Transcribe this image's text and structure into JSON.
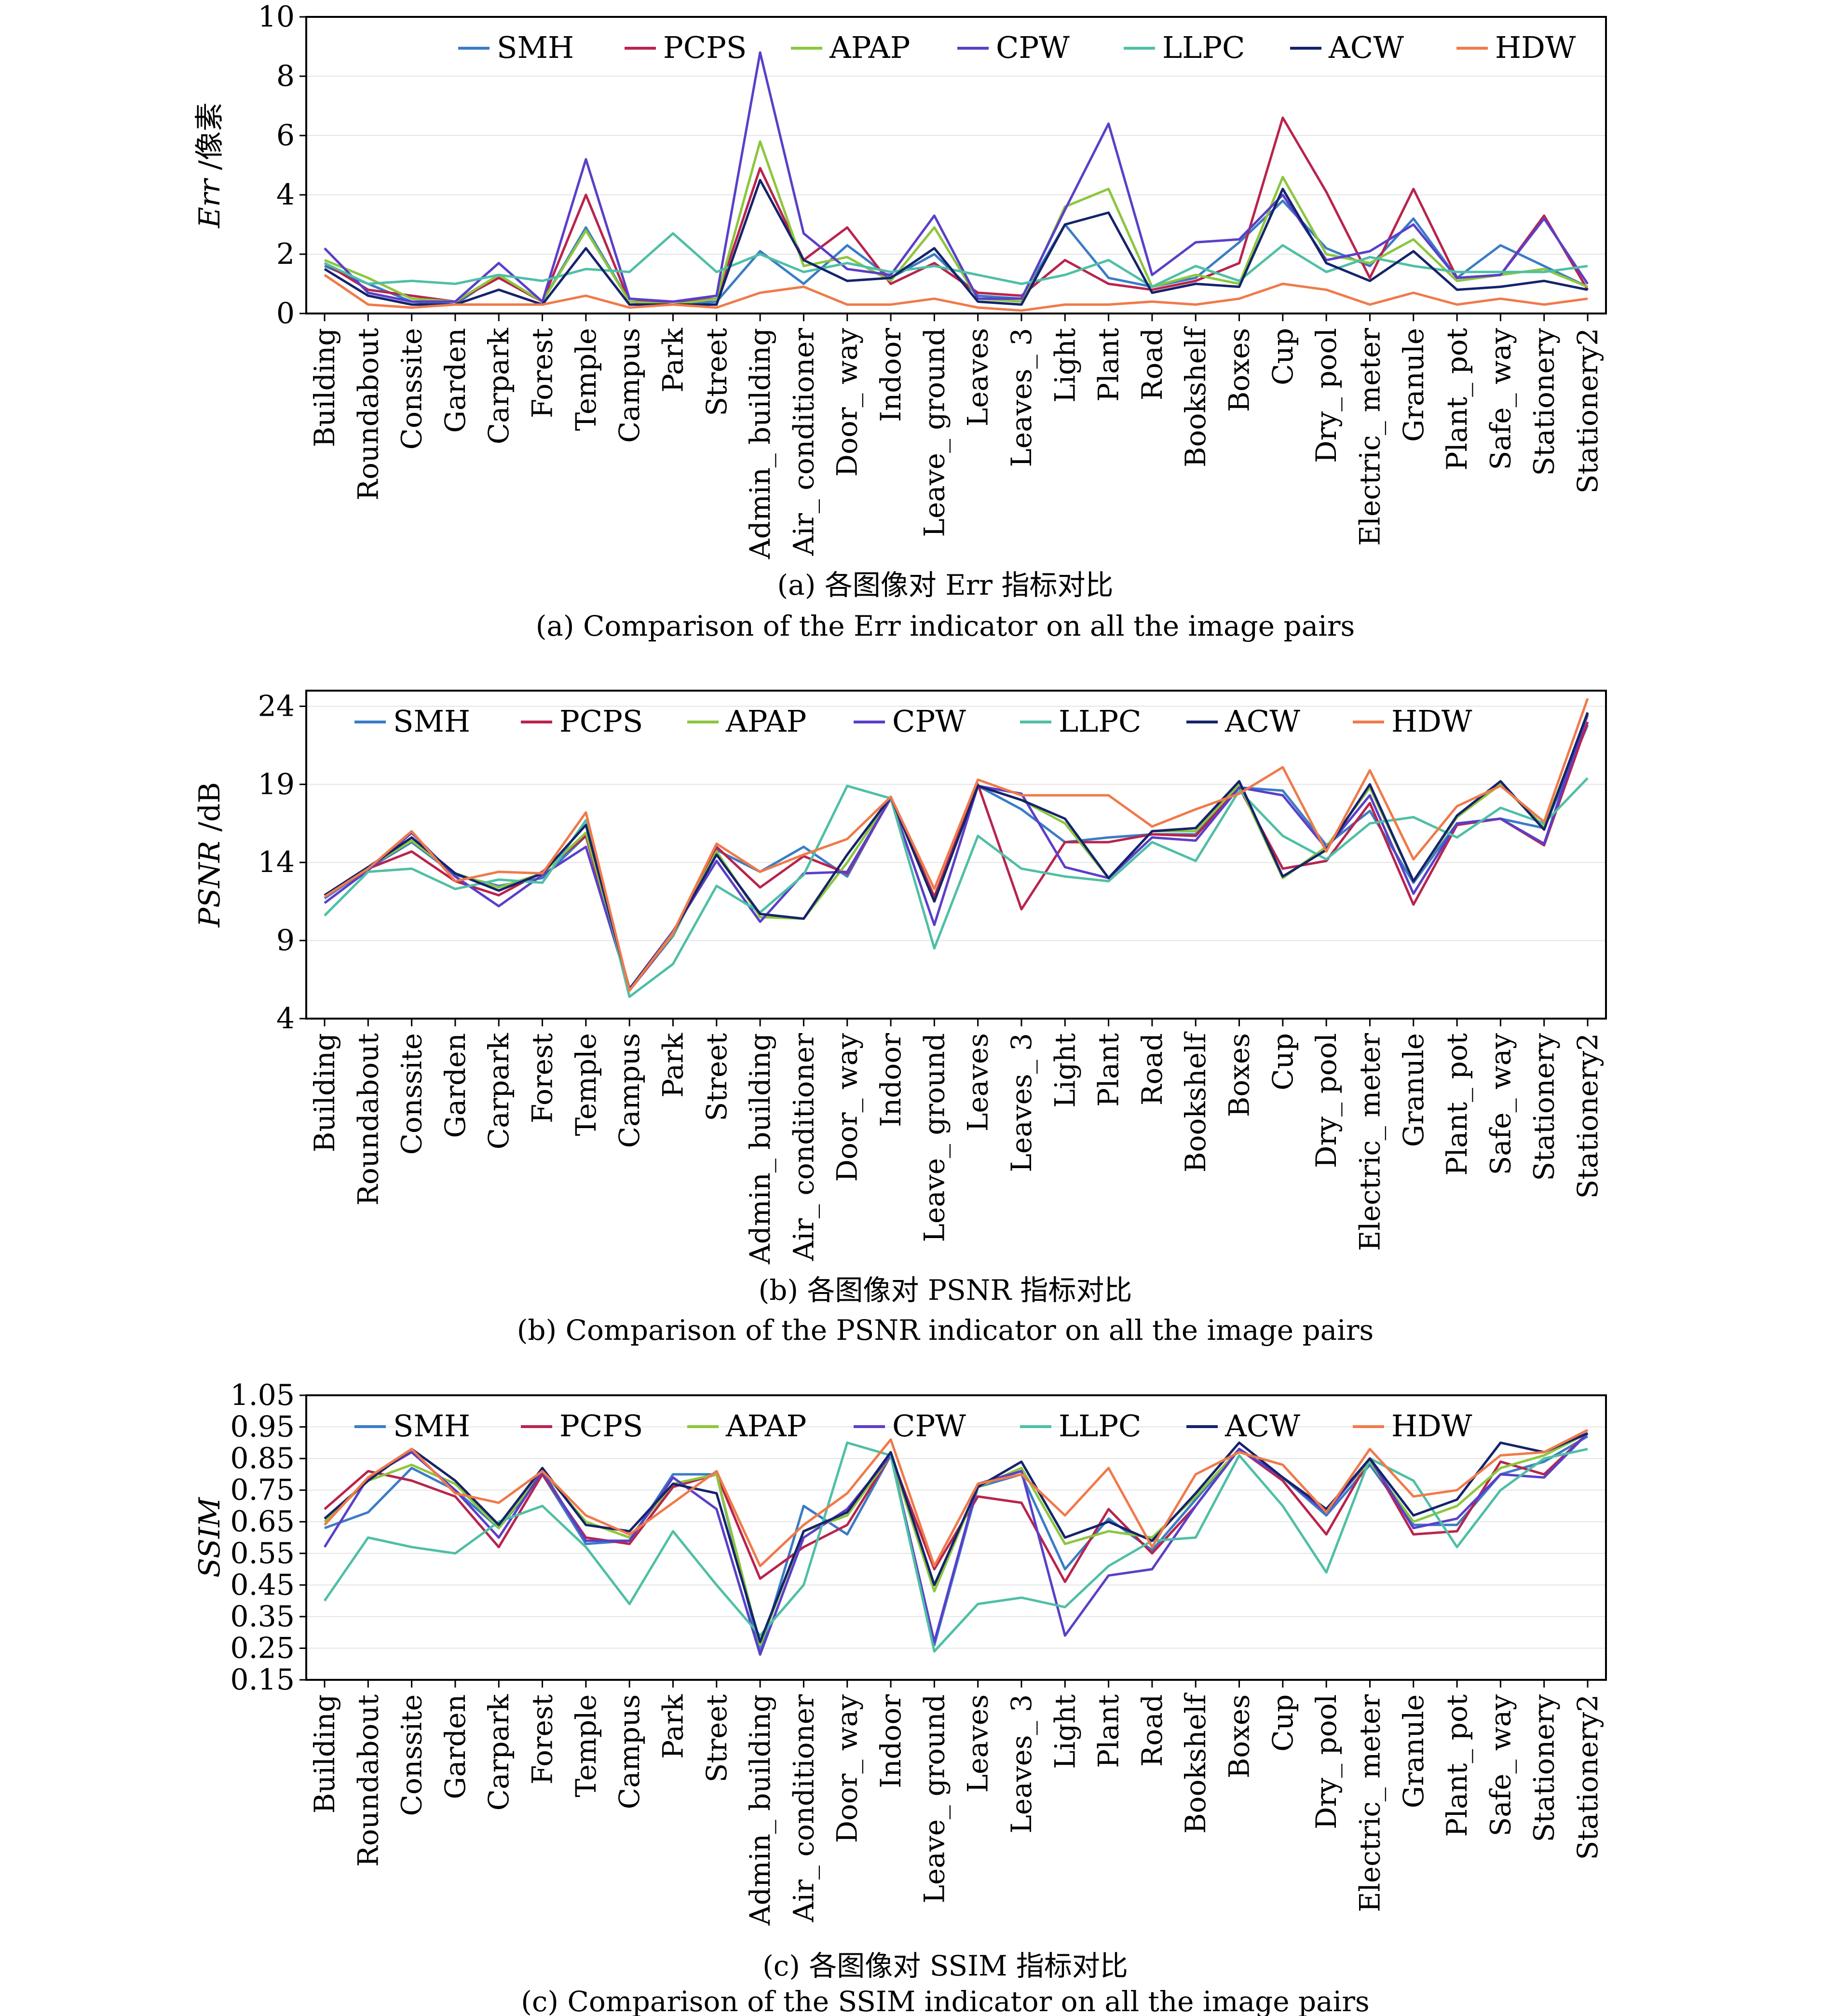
{
  "categories": [
    "Building",
    "Roundabout",
    "Conssite",
    "Garden",
    "Carpark",
    "Forest",
    "Temple",
    "Campus",
    "Park",
    "Street",
    "Admin_building",
    "Air_conditioner",
    "Door_way",
    "Indoor",
    "Leave_ground",
    "Leaves",
    "Leaves_3",
    "Light",
    "Plant",
    "Road",
    "Bookshelf",
    "Boxes",
    "Cup",
    "Dry_pool",
    "Electric_meter",
    "Granule",
    "Plant_pot",
    "Safe_way",
    "Stationery",
    "Stationery2"
  ],
  "series_styles": [
    {
      "name": "SMH",
      "color": "#3a7cc6"
    },
    {
      "name": "PCPS",
      "color": "#b8244d"
    },
    {
      "name": "APAP",
      "color": "#8cc63e"
    },
    {
      "name": "CPW",
      "color": "#5b3fc8"
    },
    {
      "name": "LLPC",
      "color": "#4fbfa5"
    },
    {
      "name": "ACW",
      "color": "#15236b"
    },
    {
      "name": "HDW",
      "color": "#f07a4a"
    }
  ],
  "chart_data": [
    {
      "type": "line",
      "ylabel_italic": "Err",
      "ylabel_unit": " /像素",
      "ylim": [
        0,
        10
      ],
      "yticks": [
        "0",
        "2",
        "4",
        "6",
        "8",
        "10"
      ],
      "grid": true,
      "legend": "top",
      "caption_cn": "(a) 各图像对 Err 指标对比",
      "caption_en": "(a) Comparison of the Err indicator on all the image pairs",
      "series": [
        {
          "name": "SMH",
          "values": [
            1.6,
            1.0,
            0.4,
            0.3,
            1.3,
            0.4,
            2.9,
            0.4,
            0.3,
            0.4,
            2.1,
            1.0,
            2.3,
            1.2,
            2.0,
            0.6,
            0.5,
            3.0,
            1.2,
            0.9,
            1.2,
            2.4,
            3.8,
            2.2,
            1.6,
            3.2,
            1.2,
            2.3,
            1.6,
            0.9
          ]
        },
        {
          "name": "PCPS",
          "values": [
            1.7,
            0.8,
            0.6,
            0.4,
            1.2,
            0.4,
            4.0,
            0.4,
            0.4,
            0.5,
            4.9,
            1.8,
            2.9,
            1.0,
            1.7,
            0.7,
            0.6,
            1.8,
            1.0,
            0.8,
            1.1,
            1.7,
            6.6,
            4.1,
            1.2,
            4.2,
            1.2,
            1.3,
            3.3,
            0.8
          ]
        },
        {
          "name": "APAP",
          "values": [
            1.8,
            1.2,
            0.5,
            0.4,
            1.3,
            0.4,
            2.8,
            0.4,
            0.3,
            0.5,
            5.8,
            1.6,
            1.9,
            1.1,
            2.9,
            0.5,
            0.4,
            3.6,
            4.2,
            0.9,
            1.3,
            1.0,
            4.6,
            2.0,
            1.7,
            2.5,
            1.1,
            1.3,
            1.5,
            0.9
          ]
        },
        {
          "name": "CPW",
          "values": [
            2.2,
            0.7,
            0.4,
            0.4,
            1.7,
            0.4,
            5.2,
            0.5,
            0.4,
            0.6,
            8.8,
            2.7,
            1.5,
            1.3,
            3.3,
            0.5,
            0.5,
            3.5,
            6.4,
            1.3,
            2.4,
            2.5,
            4.0,
            1.8,
            2.1,
            3.0,
            1.2,
            1.3,
            3.2,
            1.0
          ]
        },
        {
          "name": "LLPC",
          "values": [
            1.7,
            1.0,
            1.1,
            1.0,
            1.3,
            1.1,
            1.5,
            1.4,
            2.7,
            1.4,
            2.0,
            1.4,
            1.7,
            1.4,
            1.6,
            1.3,
            1.0,
            1.3,
            1.8,
            0.9,
            1.6,
            1.1,
            2.3,
            1.4,
            1.9,
            1.6,
            1.4,
            1.4,
            1.4,
            1.6
          ]
        },
        {
          "name": "ACW",
          "values": [
            1.5,
            0.6,
            0.3,
            0.3,
            0.8,
            0.3,
            2.2,
            0.3,
            0.3,
            0.3,
            4.5,
            1.8,
            1.1,
            1.2,
            2.2,
            0.4,
            0.3,
            3.0,
            3.4,
            0.7,
            1.0,
            0.9,
            4.2,
            1.7,
            1.1,
            2.1,
            0.8,
            0.9,
            1.1,
            0.8
          ]
        },
        {
          "name": "HDW",
          "values": [
            1.3,
            0.3,
            0.2,
            0.3,
            0.3,
            0.3,
            0.6,
            0.2,
            0.3,
            0.2,
            0.7,
            0.9,
            0.3,
            0.3,
            0.5,
            0.2,
            0.1,
            0.3,
            0.3,
            0.4,
            0.3,
            0.5,
            1.0,
            0.8,
            0.3,
            0.7,
            0.3,
            0.5,
            0.3,
            0.5
          ]
        }
      ]
    },
    {
      "type": "line",
      "ylabel_italic": "PSNR",
      "ylabel_unit": " /dB",
      "ylim": [
        4,
        25
      ],
      "yticks": [
        "4",
        "9",
        "14",
        "19",
        "24"
      ],
      "grid": true,
      "legend": "top",
      "caption_cn": "(b) 各图像对 PSNR 指标对比",
      "caption_en": "(b) Comparison of the PSNR indicator on all the image pairs",
      "series": [
        {
          "name": "SMH",
          "values": [
            11.7,
            13.6,
            15.3,
            13.2,
            12.5,
            13.0,
            15.7,
            5.8,
            9.3,
            14.8,
            13.4,
            15.0,
            13.1,
            18.2,
            11.8,
            18.9,
            17.4,
            15.3,
            15.6,
            15.8,
            15.8,
            18.8,
            18.6,
            15.1,
            17.3,
            12.7,
            16.5,
            16.8,
            16.2,
            22.8
          ]
        },
        {
          "name": "PCPS",
          "values": [
            11.8,
            13.6,
            14.7,
            12.8,
            11.9,
            13.4,
            15.7,
            5.8,
            9.4,
            15.0,
            12.4,
            14.4,
            13.3,
            18.1,
            11.8,
            19.0,
            11.0,
            15.3,
            15.3,
            15.8,
            15.7,
            18.8,
            13.6,
            14.1,
            17.8,
            11.3,
            16.4,
            16.8,
            15.1,
            23.0
          ]
        },
        {
          "name": "APAP",
          "values": [
            11.9,
            13.7,
            15.4,
            13.3,
            12.4,
            13.3,
            15.9,
            5.9,
            9.4,
            14.7,
            10.5,
            10.4,
            14.0,
            18.2,
            11.5,
            18.9,
            18.0,
            16.5,
            13.0,
            16.0,
            16.0,
            19.0,
            13.0,
            15.0,
            18.8,
            12.8,
            16.9,
            19.0,
            16.3,
            23.4
          ]
        },
        {
          "name": "CPW",
          "values": [
            11.4,
            13.5,
            15.9,
            13.1,
            11.2,
            13.2,
            15.0,
            5.9,
            9.6,
            14.1,
            10.2,
            13.3,
            13.4,
            18.1,
            10.0,
            18.9,
            18.4,
            13.7,
            13.0,
            15.6,
            15.4,
            18.8,
            18.3,
            14.9,
            18.3,
            12.0,
            16.5,
            16.8,
            15.2,
            23.5
          ]
        },
        {
          "name": "LLPC",
          "values": [
            10.6,
            13.4,
            13.6,
            12.3,
            12.9,
            12.7,
            16.7,
            5.4,
            7.5,
            12.5,
            10.8,
            13.2,
            18.9,
            18.1,
            8.5,
            15.7,
            13.6,
            13.1,
            12.8,
            15.3,
            14.1,
            18.6,
            15.7,
            14.2,
            16.5,
            16.9,
            15.6,
            17.5,
            16.5,
            19.4
          ]
        },
        {
          "name": "ACW",
          "values": [
            11.9,
            13.7,
            15.6,
            13.3,
            12.2,
            13.3,
            16.4,
            5.9,
            9.5,
            14.5,
            10.7,
            10.4,
            14.5,
            18.2,
            11.5,
            18.9,
            18.0,
            16.8,
            13.0,
            16.0,
            16.2,
            19.2,
            13.1,
            14.8,
            19.0,
            12.8,
            17.0,
            19.2,
            16.1,
            23.6
          ]
        },
        {
          "name": "HDW",
          "values": [
            11.8,
            13.6,
            16.0,
            12.8,
            13.4,
            13.3,
            17.2,
            5.8,
            9.5,
            15.2,
            13.4,
            14.5,
            15.5,
            18.2,
            12.3,
            19.3,
            18.3,
            18.3,
            18.3,
            16.3,
            17.4,
            18.4,
            20.1,
            14.7,
            19.9,
            14.2,
            17.6,
            18.9,
            16.6,
            24.5
          ]
        }
      ]
    },
    {
      "type": "line",
      "ylabel_italic": "SSIM",
      "ylabel_unit": "",
      "ylim": [
        0.15,
        1.05
      ],
      "yticks": [
        "0.15",
        "0.25",
        "0.35",
        "0.45",
        "0.55",
        "0.65",
        "0.75",
        "0.85",
        "0.95",
        "1.05"
      ],
      "grid": true,
      "legend": "top",
      "caption_cn": "(c) 各图像对 SSIM 指标对比",
      "caption_en": "(c) Comparison of the SSIM indicator on all the image pairs",
      "series": [
        {
          "name": "SMH",
          "values": [
            0.63,
            0.68,
            0.82,
            0.75,
            0.63,
            0.8,
            0.58,
            0.59,
            0.8,
            0.8,
            0.24,
            0.7,
            0.61,
            0.86,
            0.26,
            0.76,
            0.8,
            0.5,
            0.66,
            0.56,
            0.72,
            0.88,
            0.79,
            0.67,
            0.83,
            0.64,
            0.64,
            0.8,
            0.84,
            0.92
          ]
        },
        {
          "name": "PCPS",
          "values": [
            0.69,
            0.81,
            0.78,
            0.73,
            0.57,
            0.8,
            0.6,
            0.58,
            0.76,
            0.8,
            0.47,
            0.57,
            0.64,
            0.86,
            0.5,
            0.73,
            0.71,
            0.46,
            0.69,
            0.55,
            0.7,
            0.88,
            0.78,
            0.61,
            0.85,
            0.61,
            0.62,
            0.84,
            0.8,
            0.93
          ]
        },
        {
          "name": "APAP",
          "values": [
            0.65,
            0.78,
            0.83,
            0.77,
            0.63,
            0.81,
            0.65,
            0.6,
            0.77,
            0.8,
            0.26,
            0.62,
            0.67,
            0.86,
            0.43,
            0.76,
            0.82,
            0.58,
            0.62,
            0.6,
            0.73,
            0.88,
            0.79,
            0.69,
            0.84,
            0.65,
            0.7,
            0.82,
            0.86,
            0.93
          ]
        },
        {
          "name": "CPW",
          "values": [
            0.57,
            0.79,
            0.87,
            0.75,
            0.6,
            0.81,
            0.59,
            0.59,
            0.79,
            0.69,
            0.23,
            0.6,
            0.69,
            0.86,
            0.27,
            0.77,
            0.81,
            0.29,
            0.48,
            0.5,
            0.7,
            0.88,
            0.79,
            0.68,
            0.85,
            0.63,
            0.66,
            0.8,
            0.79,
            0.93
          ]
        },
        {
          "name": "LLPC",
          "values": [
            0.4,
            0.6,
            0.57,
            0.55,
            0.65,
            0.7,
            0.57,
            0.39,
            0.62,
            0.45,
            0.29,
            0.45,
            0.9,
            0.86,
            0.24,
            0.39,
            0.41,
            0.38,
            0.51,
            0.59,
            0.6,
            0.86,
            0.7,
            0.49,
            0.85,
            0.78,
            0.57,
            0.75,
            0.85,
            0.88
          ]
        },
        {
          "name": "ACW",
          "values": [
            0.66,
            0.78,
            0.88,
            0.78,
            0.64,
            0.82,
            0.64,
            0.62,
            0.77,
            0.74,
            0.27,
            0.62,
            0.68,
            0.87,
            0.45,
            0.76,
            0.84,
            0.6,
            0.65,
            0.59,
            0.74,
            0.9,
            0.79,
            0.69,
            0.85,
            0.67,
            0.72,
            0.9,
            0.87,
            0.93
          ]
        },
        {
          "name": "HDW",
          "values": [
            0.64,
            0.79,
            0.88,
            0.74,
            0.71,
            0.81,
            0.67,
            0.61,
            0.71,
            0.81,
            0.51,
            0.64,
            0.74,
            0.91,
            0.51,
            0.77,
            0.8,
            0.67,
            0.82,
            0.57,
            0.8,
            0.87,
            0.83,
            0.68,
            0.88,
            0.73,
            0.75,
            0.86,
            0.87,
            0.94
          ]
        }
      ]
    }
  ]
}
